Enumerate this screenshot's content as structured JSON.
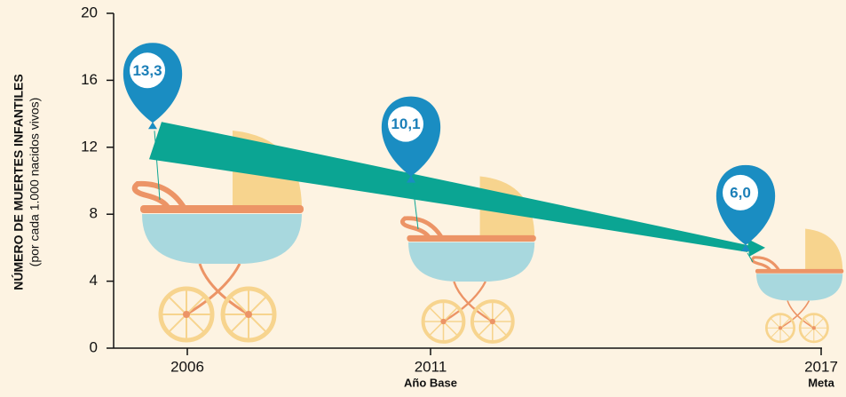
{
  "chart_data": {
    "type": "balloon",
    "ylabel": "NÚMERO DE MUERTES INFANTILES",
    "ylabel_sub": "(por cada 1.000 nacidos vivos)",
    "categories": [
      "2006",
      "2011",
      "2017"
    ],
    "x_sublabels": [
      null,
      "Año Base",
      "Meta"
    ],
    "values": [
      13.3,
      10.1,
      6.0
    ],
    "value_labels": [
      "13,3",
      "10,1",
      "6,0"
    ],
    "color": "#1a8dc2",
    "ylim": [
      0,
      20
    ],
    "yticks": [
      0,
      4,
      8,
      12,
      16,
      20
    ]
  }
}
